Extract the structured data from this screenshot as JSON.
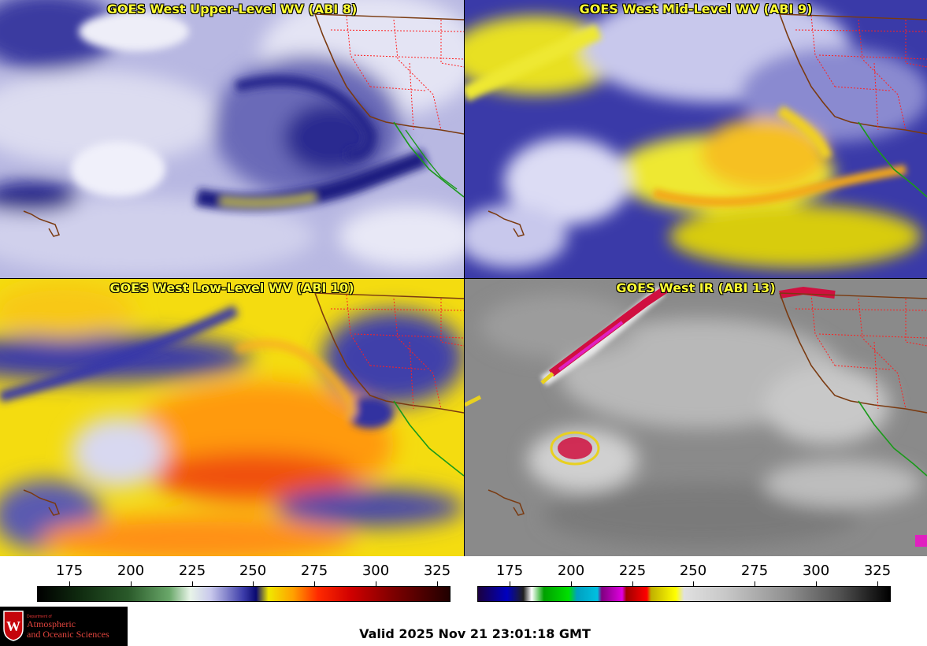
{
  "panels": {
    "upper": {
      "title": "GOES West Upper-Level WV (ABI 8)"
    },
    "mid": {
      "title": "GOES West Mid-Level WV (ABI 9)"
    },
    "low": {
      "title": "GOES West Low-Level WV (ABI 10)"
    },
    "ir": {
      "title": "GOES West IR (ABI 13)"
    }
  },
  "colorbars": {
    "wv": {
      "ticks": [
        "175",
        "200",
        "225",
        "250",
        "275",
        "300",
        "325"
      ]
    },
    "ir": {
      "ticks": [
        "175",
        "200",
        "225",
        "250",
        "275",
        "300",
        "325"
      ]
    }
  },
  "logo": {
    "line1": "Department of",
    "line2": "Atmospheric",
    "line3": "and Oceanic Sciences"
  },
  "valid_time": "Valid 2025 Nov 21 23:01:18 GMT",
  "colors": {
    "title_yellow": "#ffff33",
    "wv_dark_blue": "#0a0f7a",
    "wv_light": "#d8d8f0",
    "wv_yellow": "#f2ee00",
    "wv_orange": "#ff8a00",
    "wv_red": "#e8300c",
    "ir_gray": "#8c8c8c",
    "coast": "#7a3a10",
    "mexico": "#1a9a1a",
    "states": "#ff2020"
  }
}
